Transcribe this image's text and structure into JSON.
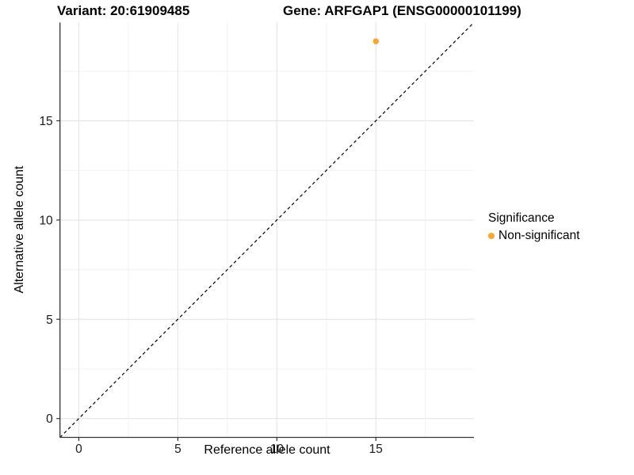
{
  "titles": {
    "variant": "Variant: 20:61909485",
    "gene": "Gene: ARFGAP1 (ENSG00000101199)"
  },
  "chart_data": {
    "type": "scatter",
    "title": "Variant: 20:61909485  Gene: ARFGAP1 (ENSG00000101199)",
    "xlabel": "Reference allele count",
    "ylabel": "Alternative allele count",
    "xlim": [
      -0.95,
      19.95
    ],
    "ylim": [
      -0.95,
      19.95
    ],
    "xticks": [
      0,
      5,
      10,
      15
    ],
    "yticks": [
      0,
      5,
      10,
      15
    ],
    "minor_grid_step": 2.5,
    "grid": true,
    "points": [
      {
        "x": 15,
        "y": 19,
        "series": "Non-significant",
        "color": "#F9A62D"
      }
    ],
    "identity_line": {
      "style": "dashed",
      "slope": 1,
      "intercept": 0,
      "color": "#000000"
    },
    "legend": {
      "position": "right",
      "title": "Significance",
      "entries": [
        {
          "label": "Non-significant",
          "color": "#F9A62D"
        }
      ]
    },
    "colors": {
      "axis_line": "#333333",
      "major_grid": "#e4e4e4",
      "minor_grid": "#efefef",
      "tick_text": "#1a1a1a"
    }
  }
}
